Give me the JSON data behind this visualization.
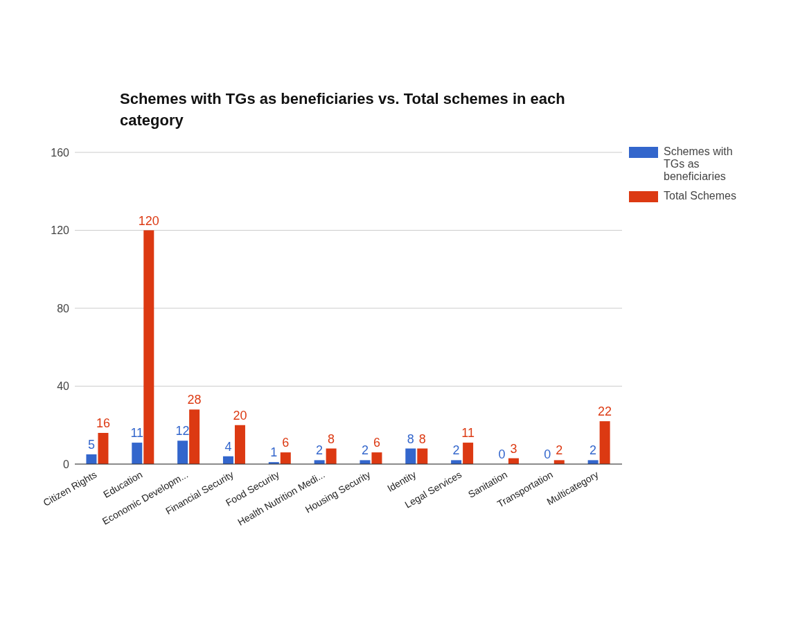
{
  "chart_data": {
    "type": "bar",
    "title": "Schemes with TGs as beneficiaries vs. Total schemes in each category",
    "categories": [
      "Citizen Rights",
      "Education",
      "Economic Developm...",
      "Financial Security",
      "Food Security",
      "Health Nutrition Medi...",
      "Housing Security",
      "Identity",
      "Legal Services",
      "Sanitation",
      "Transportation",
      "Multicategory"
    ],
    "series": [
      {
        "name": "Schemes with TGs as beneficiaries",
        "color": "#3366cc",
        "values": [
          5,
          11,
          12,
          4,
          1,
          2,
          2,
          8,
          2,
          0,
          0,
          2
        ]
      },
      {
        "name": "Total Schemes",
        "color": "#dc3912",
        "values": [
          16,
          120,
          28,
          20,
          6,
          8,
          6,
          8,
          11,
          3,
          2,
          22
        ]
      }
    ],
    "ylim": [
      0,
      160
    ],
    "yticks": [
      0,
      40,
      80,
      120,
      160
    ],
    "grid": "y",
    "legend": "top right",
    "data_labels": true
  }
}
